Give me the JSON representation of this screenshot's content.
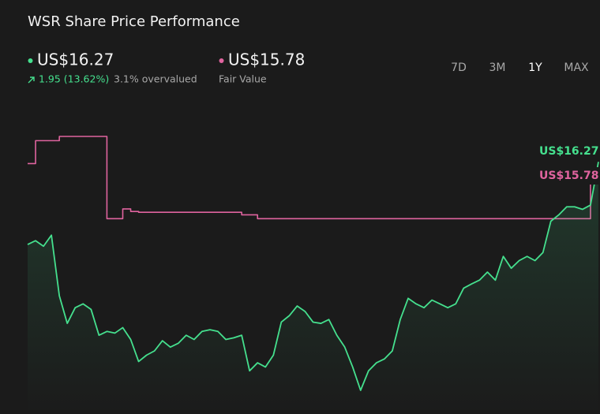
{
  "header": {
    "title": "WSR Share Price Performance",
    "price": "US$16.27",
    "change": "1.95 (13.62%)",
    "valuation": "3.1% overvalued",
    "fair_value": "US$15.78",
    "fair_value_label": "Fair Value"
  },
  "timeframes": [
    "7D",
    "3M",
    "1Y",
    "MAX"
  ],
  "active_timeframe": 2,
  "chart_data": {
    "type": "line",
    "series": [
      {
        "color": "#45e08e",
        "area": true,
        "step": false,
        "values": [
          14.32,
          14.41,
          14.28,
          14.54,
          13.11,
          12.46,
          12.83,
          12.92,
          12.79,
          12.18,
          12.27,
          12.23,
          12.36,
          12.08,
          11.56,
          11.71,
          11.81,
          12.05,
          11.9,
          11.99,
          12.18,
          12.08,
          12.27,
          12.31,
          12.27,
          12.08,
          12.12,
          12.18,
          11.34,
          11.53,
          11.43,
          11.71,
          12.49,
          12.64,
          12.87,
          12.74,
          12.49,
          12.46,
          12.55,
          12.18,
          11.9,
          11.43,
          10.88,
          11.34,
          11.53,
          11.62,
          11.81,
          12.55,
          13.05,
          12.92,
          12.83,
          13.01,
          12.92,
          12.83,
          12.92,
          13.29,
          13.39,
          13.48,
          13.67,
          13.48,
          14.04,
          13.76,
          13.94,
          14.04,
          13.94,
          14.13,
          14.87,
          15.02,
          15.21,
          15.21,
          15.15,
          15.25,
          16.27
        ]
      },
      {
        "color": "#e0649f",
        "area": false,
        "step": true,
        "values": [
          16.23,
          16.77,
          16.77,
          16.77,
          16.87,
          16.87,
          16.87,
          16.87,
          16.87,
          16.87,
          14.93,
          14.93,
          15.16,
          15.1,
          15.08,
          15.08,
          15.08,
          15.08,
          15.08,
          15.08,
          15.08,
          15.08,
          15.08,
          15.08,
          15.08,
          15.08,
          15.08,
          15.02,
          15.02,
          14.93,
          14.93,
          14.93,
          14.93,
          14.93,
          14.93,
          14.93,
          14.93,
          14.93,
          14.93,
          14.93,
          14.93,
          14.93,
          14.93,
          14.93,
          14.93,
          14.93,
          14.93,
          14.93,
          14.93,
          14.93,
          14.93,
          14.93,
          14.93,
          14.93,
          14.93,
          14.93,
          14.93,
          14.93,
          14.93,
          14.93,
          14.93,
          14.93,
          14.93,
          14.93,
          14.93,
          14.93,
          14.93,
          14.93,
          14.93,
          14.93,
          14.93,
          15.78,
          15.78
        ]
      }
    ]
  }
}
